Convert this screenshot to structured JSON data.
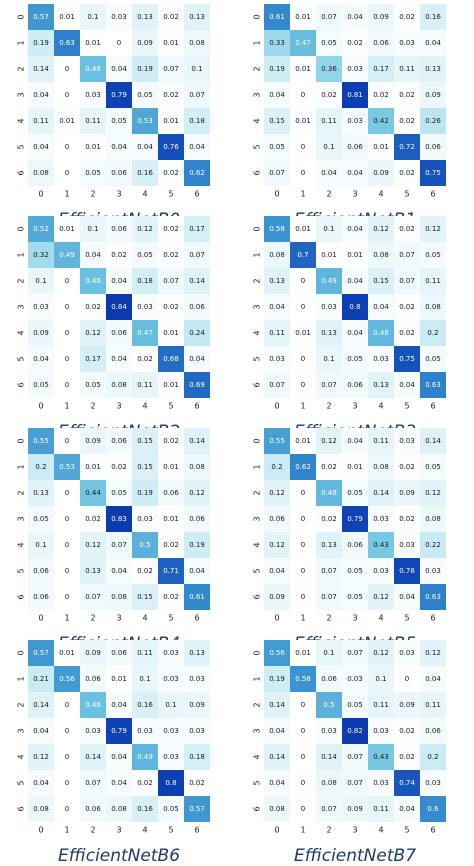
{
  "chart_data": [
    {
      "type": "heatmap",
      "title": "EfficientNetB0",
      "categories": [
        "0",
        "1",
        "2",
        "3",
        "4",
        "5",
        "6"
      ],
      "matrix": [
        [
          "0.57",
          "0.01",
          "0.1",
          "0.03",
          "0.13",
          "0.02",
          "0.13"
        ],
        [
          "0.19",
          "0.63",
          "0.01",
          "0",
          "0.09",
          "0.01",
          "0.08"
        ],
        [
          "0.14",
          "0",
          "0.46",
          "0.04",
          "0.19",
          "0.07",
          "0.1"
        ],
        [
          "0.04",
          "0",
          "0.03",
          "0.79",
          "0.05",
          "0.02",
          "0.07"
        ],
        [
          "0.11",
          "0.01",
          "0.11",
          "0.05",
          "0.53",
          "0.01",
          "0.18"
        ],
        [
          "0.04",
          "0",
          "0.01",
          "0.04",
          "0.04",
          "0.76",
          "0.04"
        ],
        [
          "0.08",
          "0",
          "0.05",
          "0.06",
          "0.16",
          "0.02",
          "0.62"
        ]
      ]
    },
    {
      "type": "heatmap",
      "title": "EfficientNetB1",
      "categories": [
        "0",
        "1",
        "2",
        "3",
        "4",
        "5",
        "6"
      ],
      "matrix": [
        [
          "0.61",
          "0.01",
          "0.07",
          "0.04",
          "0.09",
          "0.02",
          "0.16"
        ],
        [
          "0.33",
          "0.47",
          "0.05",
          "0.02",
          "0.06",
          "0.03",
          "0.04"
        ],
        [
          "0.19",
          "0.01",
          "0.36",
          "0.03",
          "0.17",
          "0.11",
          "0.13"
        ],
        [
          "0.04",
          "0",
          "0.02",
          "0.81",
          "0.02",
          "0.02",
          "0.09"
        ],
        [
          "0.15",
          "0.01",
          "0.11",
          "0.03",
          "0.42",
          "0.02",
          "0.26"
        ],
        [
          "0.05",
          "0",
          "0.1",
          "0.06",
          "0.01",
          "0.72",
          "0.06"
        ],
        [
          "0.07",
          "0",
          "0.04",
          "0.04",
          "0.09",
          "0.02",
          "0.75"
        ]
      ]
    },
    {
      "type": "heatmap",
      "title": "EfficientNetB2",
      "categories": [
        "0",
        "1",
        "2",
        "3",
        "4",
        "5",
        "6"
      ],
      "matrix": [
        [
          "0.52",
          "0.01",
          "0.1",
          "0.06",
          "0.12",
          "0.02",
          "0.17"
        ],
        [
          "0.32",
          "0.49",
          "0.04",
          "0.02",
          "0.05",
          "0.02",
          "0.07"
        ],
        [
          "0.1",
          "0",
          "0.46",
          "0.04",
          "0.18",
          "0.07",
          "0.14"
        ],
        [
          "0.03",
          "0",
          "0.02",
          "0.84",
          "0.03",
          "0.02",
          "0.06"
        ],
        [
          "0.09",
          "0",
          "0.12",
          "0.06",
          "0.47",
          "0.01",
          "0.24"
        ],
        [
          "0.04",
          "0",
          "0.17",
          "0.04",
          "0.02",
          "0.68",
          "0.04"
        ],
        [
          "0.05",
          "0",
          "0.05",
          "0.08",
          "0.11",
          "0.01",
          "0.69"
        ]
      ]
    },
    {
      "type": "heatmap",
      "title": "EfficientNetB3",
      "categories": [
        "0",
        "1",
        "2",
        "3",
        "4",
        "5",
        "6"
      ],
      "matrix": [
        [
          "0.58",
          "0.01",
          "0.1",
          "0.04",
          "0.12",
          "0.02",
          "0.12"
        ],
        [
          "0.08",
          "0.7",
          "0.01",
          "0.01",
          "0.08",
          "0.07",
          "0.05"
        ],
        [
          "0.13",
          "0",
          "0.49",
          "0.04",
          "0.15",
          "0.07",
          "0.11"
        ],
        [
          "0.04",
          "0",
          "0.03",
          "0.8",
          "0.04",
          "0.02",
          "0.08"
        ],
        [
          "0.11",
          "0.01",
          "0.13",
          "0.04",
          "0.48",
          "0.02",
          "0.2"
        ],
        [
          "0.03",
          "0",
          "0.1",
          "0.05",
          "0.03",
          "0.75",
          "0.05"
        ],
        [
          "0.07",
          "0",
          "0.07",
          "0.06",
          "0.13",
          "0.04",
          "0.63"
        ]
      ]
    },
    {
      "type": "heatmap",
      "title": "EfficientNetB4",
      "categories": [
        "0",
        "1",
        "2",
        "3",
        "4",
        "5",
        "6"
      ],
      "matrix": [
        [
          "0.55",
          "0",
          "0.09",
          "0.06",
          "0.15",
          "0.02",
          "0.14"
        ],
        [
          "0.2",
          "0.53",
          "0.01",
          "0.02",
          "0.15",
          "0.01",
          "0.08"
        ],
        [
          "0.13",
          "0",
          "0.44",
          "0.05",
          "0.19",
          "0.06",
          "0.12"
        ],
        [
          "0.05",
          "0",
          "0.02",
          "0.83",
          "0.03",
          "0.01",
          "0.06"
        ],
        [
          "0.1",
          "0",
          "0.12",
          "0.07",
          "0.5",
          "0.02",
          "0.19"
        ],
        [
          "0.06",
          "0",
          "0.13",
          "0.04",
          "0.02",
          "0.71",
          "0.04"
        ],
        [
          "0.06",
          "0",
          "0.07",
          "0.08",
          "0.15",
          "0.02",
          "0.61"
        ]
      ]
    },
    {
      "type": "heatmap",
      "title": "EfficientNetB5",
      "categories": [
        "0",
        "1",
        "2",
        "3",
        "4",
        "5",
        "6"
      ],
      "matrix": [
        [
          "0.55",
          "0.01",
          "0.12",
          "0.04",
          "0.11",
          "0.03",
          "0.14"
        ],
        [
          "0.2",
          "0.62",
          "0.02",
          "0.01",
          "0.08",
          "0.02",
          "0.05"
        ],
        [
          "0.12",
          "0",
          "0.48",
          "0.05",
          "0.14",
          "0.09",
          "0.12"
        ],
        [
          "0.06",
          "0",
          "0.02",
          "0.79",
          "0.03",
          "0.02",
          "0.08"
        ],
        [
          "0.12",
          "0",
          "0.13",
          "0.06",
          "0.43",
          "0.03",
          "0.22"
        ],
        [
          "0.04",
          "0",
          "0.07",
          "0.05",
          "0.03",
          "0.78",
          "0.03"
        ],
        [
          "0.09",
          "0",
          "0.07",
          "0.05",
          "0.12",
          "0.04",
          "0.63"
        ]
      ]
    },
    {
      "type": "heatmap",
      "title": "EfficientNetB6",
      "categories": [
        "0",
        "1",
        "2",
        "3",
        "4",
        "5",
        "6"
      ],
      "matrix": [
        [
          "0.57",
          "0.01",
          "0.09",
          "0.06",
          "0.11",
          "0.03",
          "0.13"
        ],
        [
          "0.21",
          "0.56",
          "0.06",
          "0.01",
          "0.1",
          "0.03",
          "0.03"
        ],
        [
          "0.14",
          "0",
          "0.46",
          "0.04",
          "0.16",
          "0.1",
          "0.09"
        ],
        [
          "0.04",
          "0",
          "0.03",
          "0.79",
          "0.03",
          "0.03",
          "0.03"
        ],
        [
          "0.12",
          "0",
          "0.14",
          "0.04",
          "0.49",
          "0.03",
          "0.18"
        ],
        [
          "0.04",
          "0",
          "0.07",
          "0.04",
          "0.02",
          "0.8",
          "0.02"
        ],
        [
          "0.08",
          "0",
          "0.06",
          "0.08",
          "0.16",
          "0.05",
          "0.57"
        ]
      ]
    },
    {
      "type": "heatmap",
      "title": "EfficientNetB7",
      "categories": [
        "0",
        "1",
        "2",
        "3",
        "4",
        "5",
        "6"
      ],
      "matrix": [
        [
          "0.56",
          "0.01",
          "0.1",
          "0.07",
          "0.12",
          "0.03",
          "0.12"
        ],
        [
          "0.19",
          "0.58",
          "0.06",
          "0.03",
          "0.1",
          "0",
          "0.04"
        ],
        [
          "0.14",
          "0",
          "0.5",
          "0.05",
          "0.11",
          "0.09",
          "0.11"
        ],
        [
          "0.04",
          "0",
          "0.03",
          "0.82",
          "0.03",
          "0.02",
          "0.06"
        ],
        [
          "0.14",
          "0",
          "0.14",
          "0.07",
          "0.43",
          "0.02",
          "0.2"
        ],
        [
          "0.04",
          "0",
          "0.08",
          "0.07",
          "0.03",
          "0.74",
          "0.03"
        ],
        [
          "0.08",
          "0",
          "0.07",
          "0.09",
          "0.11",
          "0.04",
          "0.6"
        ]
      ]
    }
  ]
}
